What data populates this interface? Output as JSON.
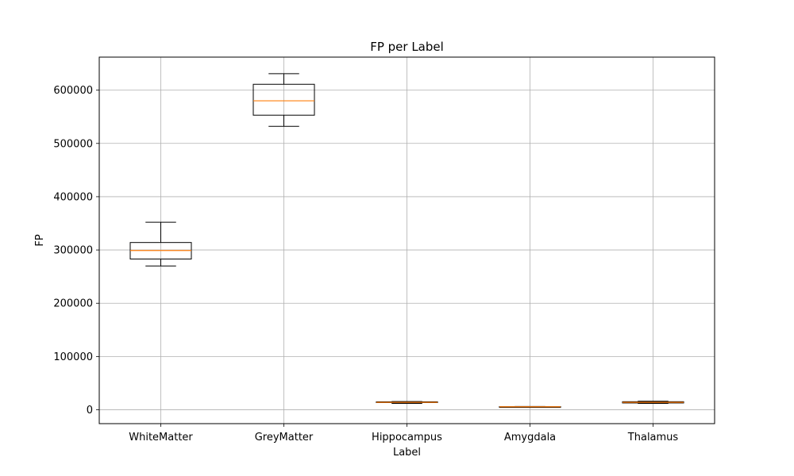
{
  "chart_data": {
    "type": "boxplot",
    "title": "FP per Label",
    "xlabel": "Label",
    "ylabel": "FP",
    "categories": [
      "WhiteMatter",
      "GreyMatter",
      "Hippocampus",
      "Amygdala",
      "Thalamus"
    ],
    "boxes": [
      {
        "label": "WhiteMatter",
        "whisker_low": 270000,
        "q1": 283000,
        "median": 299000,
        "q3": 314000,
        "whisker_high": 352000
      },
      {
        "label": "GreyMatter",
        "whisker_low": 532000,
        "q1": 553000,
        "median": 580000,
        "q3": 611000,
        "whisker_high": 631000
      },
      {
        "label": "Hippocampus",
        "whisker_low": 12000,
        "q1": 13500,
        "median": 14000,
        "q3": 15000,
        "whisker_high": 15500
      },
      {
        "label": "Amygdala",
        "whisker_low": 5000,
        "q1": 5200,
        "median": 5600,
        "q3": 6000,
        "whisker_high": 6200
      },
      {
        "label": "Thalamus",
        "whisker_low": 12000,
        "q1": 12800,
        "median": 14000,
        "q3": 15200,
        "whisker_high": 16000
      }
    ],
    "ylim": [
      -26000,
      662000
    ],
    "yticks": [
      0,
      100000,
      200000,
      300000,
      400000,
      500000,
      600000
    ],
    "ytick_labels": [
      "0",
      "100000",
      "200000",
      "300000",
      "400000",
      "500000",
      "600000"
    ],
    "grid": true,
    "colors": {
      "box": "#000000",
      "median": "#ff7f0e",
      "grid": "#b0b0b0"
    }
  }
}
